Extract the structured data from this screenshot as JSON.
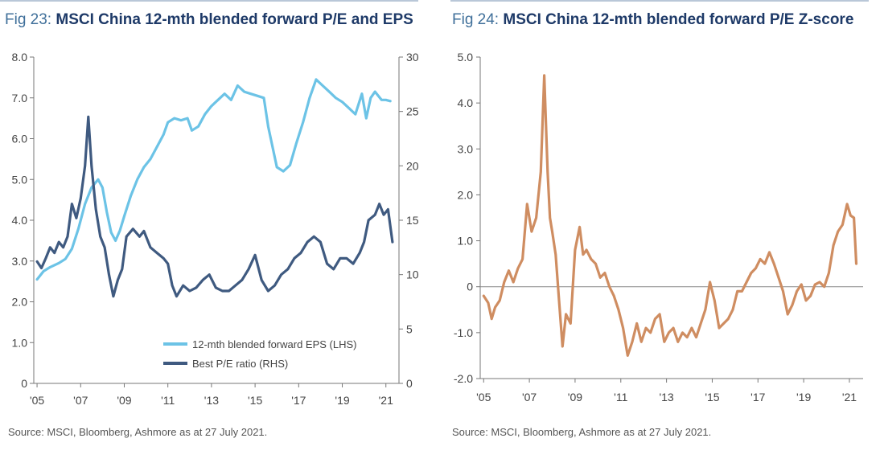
{
  "fig23": {
    "number": "Fig 23:",
    "title": "MSCI China 12-mth blended forward P/E and EPS",
    "source": "Source: MSCI, Bloomberg, Ashmore as at 27 July 2021."
  },
  "fig24": {
    "number": "Fig 24:",
    "title": "MSCI China 12-mth blended forward P/E Z-score",
    "source": "Source: MSCI, Bloomberg, Ashmore as at 27 July 2021."
  },
  "colors": {
    "eps": "#6cc3e6",
    "pe": "#3f5a80",
    "zscore": "#cf8d61",
    "axis": "#777777"
  },
  "chart_data": [
    {
      "type": "line",
      "title": "MSCI China 12-mth blended forward P/E and EPS",
      "x_ticks": [
        "'05",
        "'07",
        "'09",
        "'11",
        "'13",
        "'15",
        "'17",
        "'19",
        "'21"
      ],
      "x_tick_values": [
        2005,
        2007,
        2009,
        2011,
        2013,
        2015,
        2017,
        2019,
        2021
      ],
      "xlim": [
        2004.85,
        2021.6
      ],
      "y_left": {
        "ylim": [
          0,
          8
        ],
        "ticks": [
          "0",
          "1.0",
          "2.0",
          "3.0",
          "4.0",
          "5.0",
          "6.0",
          "7.0",
          "8.0"
        ]
      },
      "y_right": {
        "ylim": [
          0,
          30
        ],
        "ticks": [
          "0",
          "5",
          "10",
          "15",
          "20",
          "25",
          "30"
        ]
      },
      "legend_position": "bottom-center",
      "series": [
        {
          "name": "12-mth blended forward EPS (LHS)",
          "axis": "left",
          "color_key": "eps",
          "points": [
            [
              2005.0,
              2.55
            ],
            [
              2005.3,
              2.75
            ],
            [
              2005.6,
              2.85
            ],
            [
              2006.0,
              2.95
            ],
            [
              2006.3,
              3.05
            ],
            [
              2006.6,
              3.3
            ],
            [
              2006.9,
              3.8
            ],
            [
              2007.2,
              4.4
            ],
            [
              2007.5,
              4.8
            ],
            [
              2007.8,
              5.0
            ],
            [
              2008.0,
              4.8
            ],
            [
              2008.2,
              4.2
            ],
            [
              2008.4,
              3.7
            ],
            [
              2008.6,
              3.5
            ],
            [
              2008.8,
              3.75
            ],
            [
              2009.0,
              4.1
            ],
            [
              2009.3,
              4.6
            ],
            [
              2009.6,
              5.0
            ],
            [
              2009.9,
              5.3
            ],
            [
              2010.2,
              5.5
            ],
            [
              2010.5,
              5.8
            ],
            [
              2010.8,
              6.1
            ],
            [
              2011.0,
              6.4
            ],
            [
              2011.3,
              6.5
            ],
            [
              2011.6,
              6.45
            ],
            [
              2011.9,
              6.5
            ],
            [
              2012.1,
              6.2
            ],
            [
              2012.4,
              6.3
            ],
            [
              2012.7,
              6.6
            ],
            [
              2013.0,
              6.8
            ],
            [
              2013.3,
              6.95
            ],
            [
              2013.6,
              7.1
            ],
            [
              2013.9,
              6.95
            ],
            [
              2014.2,
              7.3
            ],
            [
              2014.5,
              7.15
            ],
            [
              2014.8,
              7.1
            ],
            [
              2015.1,
              7.05
            ],
            [
              2015.4,
              7.0
            ],
            [
              2015.6,
              6.3
            ],
            [
              2015.8,
              5.8
            ],
            [
              2016.0,
              5.3
            ],
            [
              2016.3,
              5.2
            ],
            [
              2016.6,
              5.35
            ],
            [
              2016.9,
              5.9
            ],
            [
              2017.2,
              6.4
            ],
            [
              2017.5,
              7.0
            ],
            [
              2017.8,
              7.45
            ],
            [
              2018.1,
              7.3
            ],
            [
              2018.4,
              7.15
            ],
            [
              2018.7,
              7.0
            ],
            [
              2019.0,
              6.9
            ],
            [
              2019.3,
              6.75
            ],
            [
              2019.6,
              6.6
            ],
            [
              2019.9,
              7.1
            ],
            [
              2020.1,
              6.5
            ],
            [
              2020.3,
              7.0
            ],
            [
              2020.5,
              7.15
            ],
            [
              2020.8,
              6.95
            ],
            [
              2021.0,
              6.95
            ],
            [
              2021.2,
              6.92
            ]
          ]
        },
        {
          "name": "Best P/E ratio (RHS)",
          "axis": "right",
          "color_key": "pe",
          "points": [
            [
              2005.0,
              11.2
            ],
            [
              2005.2,
              10.6
            ],
            [
              2005.4,
              11.5
            ],
            [
              2005.6,
              12.5
            ],
            [
              2005.8,
              12.0
            ],
            [
              2006.0,
              13.0
            ],
            [
              2006.2,
              12.5
            ],
            [
              2006.4,
              13.5
            ],
            [
              2006.6,
              16.5
            ],
            [
              2006.8,
              15.2
            ],
            [
              2007.0,
              17.0
            ],
            [
              2007.2,
              20.0
            ],
            [
              2007.35,
              24.5
            ],
            [
              2007.5,
              20.0
            ],
            [
              2007.7,
              16.0
            ],
            [
              2007.9,
              13.5
            ],
            [
              2008.1,
              12.5
            ],
            [
              2008.3,
              10.0
            ],
            [
              2008.5,
              8.0
            ],
            [
              2008.7,
              9.5
            ],
            [
              2008.9,
              10.5
            ],
            [
              2009.1,
              13.5
            ],
            [
              2009.4,
              14.2
            ],
            [
              2009.7,
              13.5
            ],
            [
              2009.9,
              14.0
            ],
            [
              2010.2,
              12.5
            ],
            [
              2010.5,
              12.0
            ],
            [
              2010.8,
              11.5
            ],
            [
              2011.0,
              11.0
            ],
            [
              2011.2,
              9.0
            ],
            [
              2011.4,
              8.0
            ],
            [
              2011.7,
              9.0
            ],
            [
              2012.0,
              8.5
            ],
            [
              2012.3,
              8.8
            ],
            [
              2012.6,
              9.5
            ],
            [
              2012.9,
              10.0
            ],
            [
              2013.2,
              8.8
            ],
            [
              2013.5,
              8.5
            ],
            [
              2013.8,
              8.5
            ],
            [
              2014.1,
              9.0
            ],
            [
              2014.4,
              9.5
            ],
            [
              2014.7,
              10.5
            ],
            [
              2015.0,
              11.8
            ],
            [
              2015.3,
              9.5
            ],
            [
              2015.6,
              8.5
            ],
            [
              2015.9,
              9.0
            ],
            [
              2016.2,
              10.0
            ],
            [
              2016.5,
              10.5
            ],
            [
              2016.8,
              11.5
            ],
            [
              2017.1,
              12.0
            ],
            [
              2017.4,
              13.0
            ],
            [
              2017.7,
              13.5
            ],
            [
              2018.0,
              13.0
            ],
            [
              2018.3,
              11.0
            ],
            [
              2018.6,
              10.5
            ],
            [
              2018.9,
              11.5
            ],
            [
              2019.2,
              11.5
            ],
            [
              2019.5,
              11.0
            ],
            [
              2019.8,
              12.0
            ],
            [
              2020.0,
              13.0
            ],
            [
              2020.2,
              15.0
            ],
            [
              2020.5,
              15.5
            ],
            [
              2020.7,
              16.5
            ],
            [
              2020.9,
              15.5
            ],
            [
              2021.1,
              16.0
            ],
            [
              2021.3,
              13.0
            ]
          ]
        }
      ]
    },
    {
      "type": "line",
      "title": "MSCI China 12-mth blended forward P/E Z-score",
      "x_ticks": [
        "'05",
        "'07",
        "'09",
        "'11",
        "'13",
        "'15",
        "'17",
        "'19",
        "'21"
      ],
      "x_tick_values": [
        2005,
        2007,
        2009,
        2011,
        2013,
        2015,
        2017,
        2019,
        2021
      ],
      "xlim": [
        2004.85,
        2021.6
      ],
      "y": {
        "ylim": [
          -2.0,
          5.0
        ],
        "ticks": [
          "-2.0",
          "-1.0",
          "0",
          "1.0",
          "2.0",
          "3.0",
          "4.0",
          "5.0"
        ]
      },
      "reference_line": 0,
      "series": [
        {
          "color_key": "zscore",
          "points": [
            [
              2005.0,
              -0.2
            ],
            [
              2005.2,
              -0.35
            ],
            [
              2005.35,
              -0.7
            ],
            [
              2005.5,
              -0.45
            ],
            [
              2005.7,
              -0.3
            ],
            [
              2005.9,
              0.1
            ],
            [
              2006.1,
              0.35
            ],
            [
              2006.3,
              0.1
            ],
            [
              2006.5,
              0.4
            ],
            [
              2006.7,
              0.6
            ],
            [
              2006.9,
              1.8
            ],
            [
              2007.1,
              1.2
            ],
            [
              2007.3,
              1.5
            ],
            [
              2007.5,
              2.5
            ],
            [
              2007.65,
              4.6
            ],
            [
              2007.8,
              2.5
            ],
            [
              2007.9,
              1.5
            ],
            [
              2008.0,
              1.2
            ],
            [
              2008.15,
              0.7
            ],
            [
              2008.3,
              -0.3
            ],
            [
              2008.45,
              -1.3
            ],
            [
              2008.6,
              -0.6
            ],
            [
              2008.8,
              -0.8
            ],
            [
              2009.0,
              0.8
            ],
            [
              2009.2,
              1.3
            ],
            [
              2009.35,
              0.7
            ],
            [
              2009.5,
              0.8
            ],
            [
              2009.7,
              0.6
            ],
            [
              2009.9,
              0.5
            ],
            [
              2010.1,
              0.2
            ],
            [
              2010.3,
              0.3
            ],
            [
              2010.5,
              0.0
            ],
            [
              2010.7,
              -0.2
            ],
            [
              2010.9,
              -0.5
            ],
            [
              2011.1,
              -0.9
            ],
            [
              2011.3,
              -1.5
            ],
            [
              2011.5,
              -1.2
            ],
            [
              2011.7,
              -0.8
            ],
            [
              2011.9,
              -1.2
            ],
            [
              2012.1,
              -0.9
            ],
            [
              2012.3,
              -1.0
            ],
            [
              2012.5,
              -0.7
            ],
            [
              2012.7,
              -0.6
            ],
            [
              2012.9,
              -1.2
            ],
            [
              2013.1,
              -1.0
            ],
            [
              2013.3,
              -0.9
            ],
            [
              2013.5,
              -1.2
            ],
            [
              2013.7,
              -1.0
            ],
            [
              2013.9,
              -1.1
            ],
            [
              2014.1,
              -0.9
            ],
            [
              2014.3,
              -1.1
            ],
            [
              2014.5,
              -0.8
            ],
            [
              2014.7,
              -0.5
            ],
            [
              2014.9,
              0.1
            ],
            [
              2015.1,
              -0.3
            ],
            [
              2015.3,
              -0.9
            ],
            [
              2015.5,
              -0.8
            ],
            [
              2015.7,
              -0.7
            ],
            [
              2015.9,
              -0.5
            ],
            [
              2016.1,
              -0.1
            ],
            [
              2016.3,
              -0.1
            ],
            [
              2016.5,
              0.1
            ],
            [
              2016.7,
              0.3
            ],
            [
              2016.9,
              0.4
            ],
            [
              2017.1,
              0.6
            ],
            [
              2017.3,
              0.5
            ],
            [
              2017.5,
              0.75
            ],
            [
              2017.7,
              0.5
            ],
            [
              2017.9,
              0.2
            ],
            [
              2018.1,
              -0.1
            ],
            [
              2018.3,
              -0.6
            ],
            [
              2018.5,
              -0.4
            ],
            [
              2018.7,
              -0.1
            ],
            [
              2018.9,
              0.05
            ],
            [
              2019.1,
              -0.3
            ],
            [
              2019.3,
              -0.2
            ],
            [
              2019.5,
              0.05
            ],
            [
              2019.7,
              0.1
            ],
            [
              2019.9,
              0.0
            ],
            [
              2020.1,
              0.3
            ],
            [
              2020.3,
              0.9
            ],
            [
              2020.5,
              1.2
            ],
            [
              2020.7,
              1.35
            ],
            [
              2020.9,
              1.8
            ],
            [
              2021.05,
              1.55
            ],
            [
              2021.2,
              1.5
            ],
            [
              2021.3,
              0.5
            ]
          ]
        }
      ]
    }
  ]
}
